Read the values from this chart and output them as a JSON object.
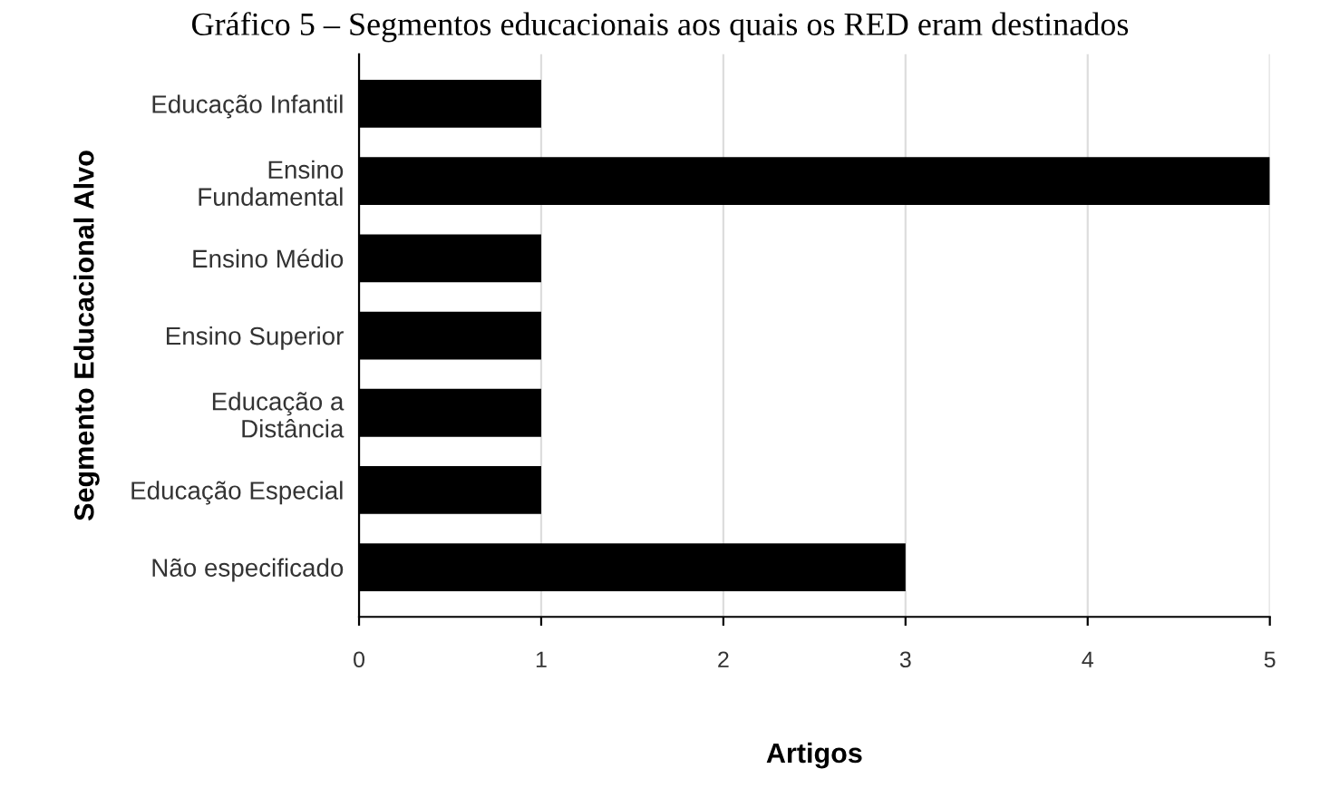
{
  "chart_data": {
    "type": "bar",
    "orientation": "horizontal",
    "title": "Gráfico 5 – Segmentos educacionais aos quais os RED eram destinados",
    "xlabel": "Artigos",
    "ylabel": "Segmento Educacional Alvo",
    "categories": [
      "Educação Infantil",
      "Ensino\nFundamental",
      "Ensino Médio",
      "Ensino Superior",
      "Educação a\nDistância",
      "Educação Especial",
      "Não especificado"
    ],
    "values": [
      1,
      5,
      1,
      1,
      1,
      1,
      3
    ],
    "color": "#000000",
    "xlim": [
      0,
      5
    ],
    "xticks": [
      0,
      1,
      2,
      3,
      4,
      5
    ],
    "grid": "x"
  }
}
